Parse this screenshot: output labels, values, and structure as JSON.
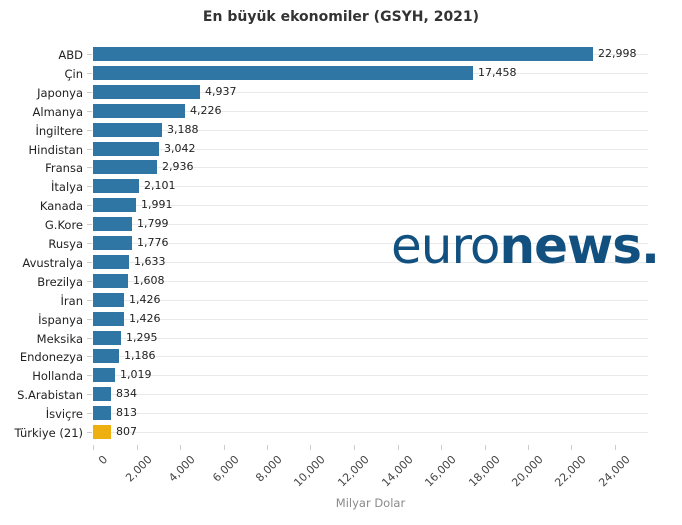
{
  "title": "En büyük ekonomiler (GSYH, 2021)",
  "watermark": {
    "part1": "euro",
    "part2": "news",
    "dot": "."
  },
  "colors": {
    "bar": "#2f76a4",
    "highlight": "#eeb011",
    "logo": "#11507f",
    "grid": "#e9e9e9",
    "tick": "#cccccc"
  },
  "chart_data": {
    "type": "bar",
    "orientation": "horizontal",
    "title": "En büyük ekonomiler (GSYH, 2021)",
    "xlabel": "Milyar Dolar",
    "ylabel": "",
    "xlim": [
      0,
      25500
    ],
    "grid": "horizontal-only",
    "legend": "none",
    "categories": [
      "ABD",
      "Çin",
      "Japonya",
      "Almanya",
      "İngiltere",
      "Hindistan",
      "Fransa",
      "İtalya",
      "Kanada",
      "G.Kore",
      "Rusya",
      "Avustralya",
      "Brezilya",
      "İran",
      "İspanya",
      "Meksika",
      "Endonezya",
      "Hollanda",
      "S.Arabistan",
      "İsviçre",
      "Türkiye (21)"
    ],
    "values": [
      22998,
      17458,
      4937,
      4226,
      3188,
      3042,
      2936,
      2101,
      1991,
      1799,
      1776,
      1633,
      1608,
      1426,
      1426,
      1295,
      1186,
      1019,
      834,
      813,
      807
    ],
    "value_labels": [
      "22,998",
      "17,458",
      "4,937",
      "4,226",
      "3,188",
      "3,042",
      "2,936",
      "2,101",
      "1,991",
      "1,799",
      "1,776",
      "1,633",
      "1,608",
      "1,426",
      "1,426",
      "1,295",
      "1,186",
      "1,019",
      "834",
      "813",
      "807"
    ],
    "highlight_index": 20,
    "x_tick_values": [
      0,
      2000,
      4000,
      6000,
      8000,
      10000,
      12000,
      14000,
      16000,
      18000,
      20000,
      22000,
      24000
    ],
    "x_tick_labels": [
      "0",
      "2,000",
      "4,000",
      "6,000",
      "8,000",
      "10,000",
      "12,000",
      "14,000",
      "16,000",
      "18,000",
      "20,000",
      "22,000",
      "24,000"
    ]
  }
}
